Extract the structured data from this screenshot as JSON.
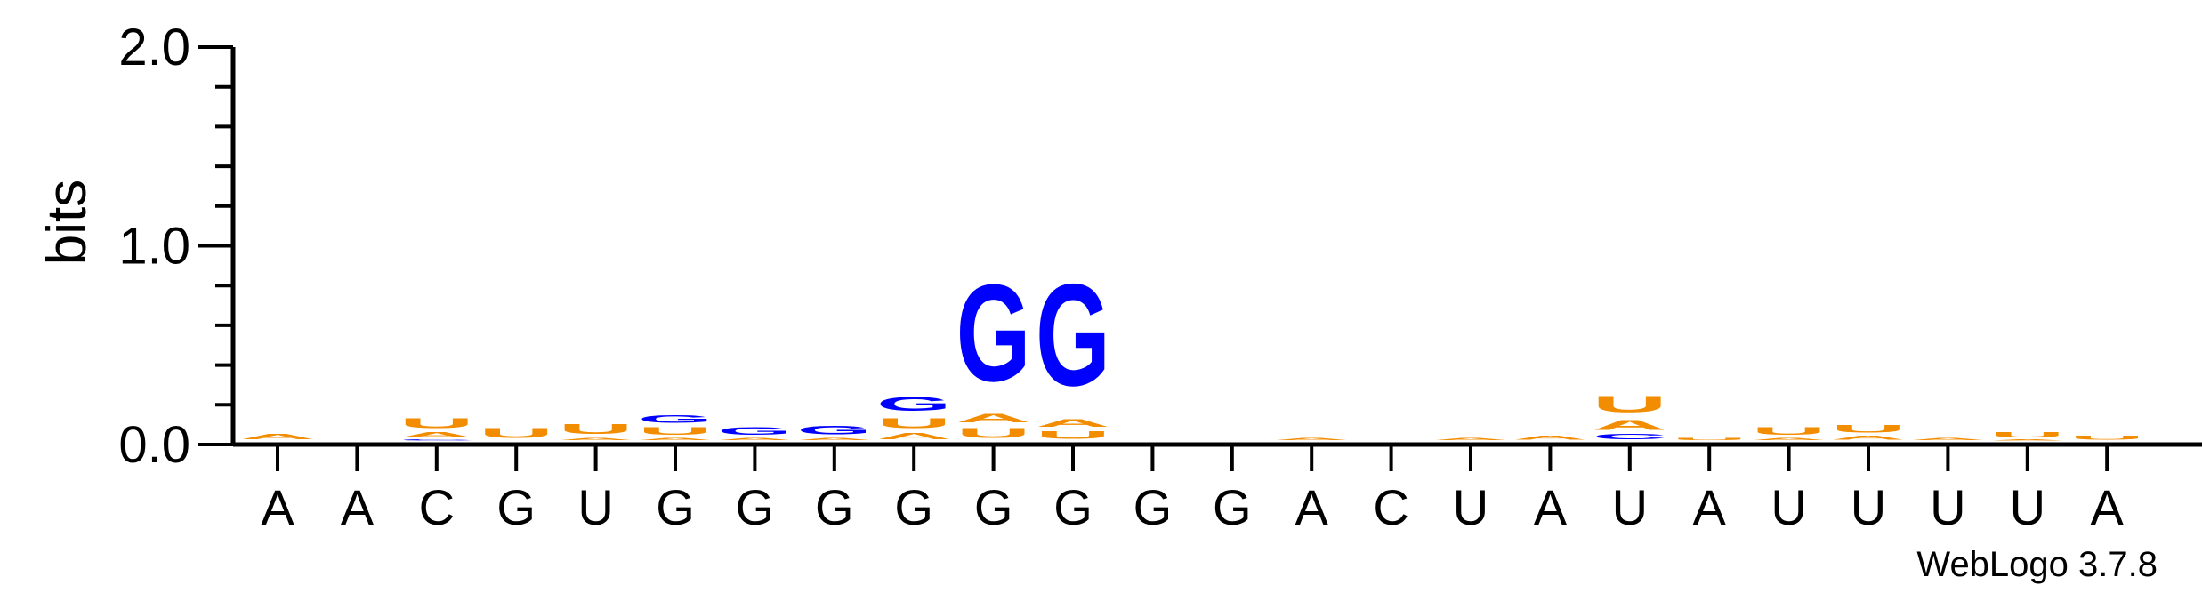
{
  "chart_data": {
    "type": "sequence-logo",
    "ylabel": "bits",
    "ylim": [
      0,
      2.0
    ],
    "yticks": [
      "0.0",
      "1.0",
      "2.0"
    ],
    "credit": "WebLogo 3.7.8",
    "colors": {
      "A": "#f28c00",
      "U": "#f28c00",
      "G": "#0000ff",
      "C": "#0000ff"
    },
    "positions": [
      {
        "label": "A",
        "stack": [
          [
            "A",
            0.04
          ]
        ]
      },
      {
        "label": "A",
        "stack": []
      },
      {
        "label": "C",
        "stack": [
          [
            "C",
            0.01
          ],
          [
            "A",
            0.04
          ],
          [
            "U",
            0.08
          ]
        ]
      },
      {
        "label": "G",
        "stack": [
          [
            "U",
            0.08
          ]
        ]
      },
      {
        "label": "U",
        "stack": [
          [
            "A",
            0.02
          ],
          [
            "U",
            0.08
          ]
        ]
      },
      {
        "label": "G",
        "stack": [
          [
            "A",
            0.02
          ],
          [
            "U",
            0.06
          ],
          [
            "G",
            0.06
          ]
        ]
      },
      {
        "label": "G",
        "stack": [
          [
            "A",
            0.02
          ],
          [
            "G",
            0.06
          ]
        ]
      },
      {
        "label": "G",
        "stack": [
          [
            "A",
            0.02
          ],
          [
            "G",
            0.07
          ]
        ]
      },
      {
        "label": "G",
        "stack": [
          [
            "A",
            0.05
          ],
          [
            "U",
            0.08
          ],
          [
            "G",
            0.11
          ]
        ]
      },
      {
        "label": "G",
        "stack": [
          [
            "U",
            0.08
          ],
          [
            "A",
            0.07
          ],
          [
            "G",
            0.78
          ]
        ]
      },
      {
        "label": "G",
        "stack": [
          [
            "U",
            0.06
          ],
          [
            "A",
            0.06
          ],
          [
            "G",
            0.82
          ]
        ]
      },
      {
        "label": "G",
        "stack": []
      },
      {
        "label": "G",
        "stack": []
      },
      {
        "label": "A",
        "stack": [
          [
            "A",
            0.02
          ]
        ]
      },
      {
        "label": "C",
        "stack": []
      },
      {
        "label": "U",
        "stack": [
          [
            "A",
            0.02
          ]
        ]
      },
      {
        "label": "A",
        "stack": [
          [
            "A",
            0.03
          ]
        ]
      },
      {
        "label": "U",
        "stack": [
          [
            "C",
            0.04
          ],
          [
            "A",
            0.08
          ],
          [
            "U",
            0.13
          ]
        ]
      },
      {
        "label": "A",
        "stack": [
          [
            "U",
            0.02
          ]
        ]
      },
      {
        "label": "U",
        "stack": [
          [
            "A",
            0.02
          ],
          [
            "U",
            0.06
          ]
        ]
      },
      {
        "label": "U",
        "stack": [
          [
            "A",
            0.03
          ],
          [
            "U",
            0.06
          ]
        ]
      },
      {
        "label": "U",
        "stack": [
          [
            "A",
            0.02
          ]
        ]
      },
      {
        "label": "U",
        "stack": [
          [
            "A",
            0.01
          ],
          [
            "U",
            0.04
          ]
        ]
      },
      {
        "label": "A",
        "stack": [
          [
            "U",
            0.03
          ]
        ]
      }
    ]
  }
}
